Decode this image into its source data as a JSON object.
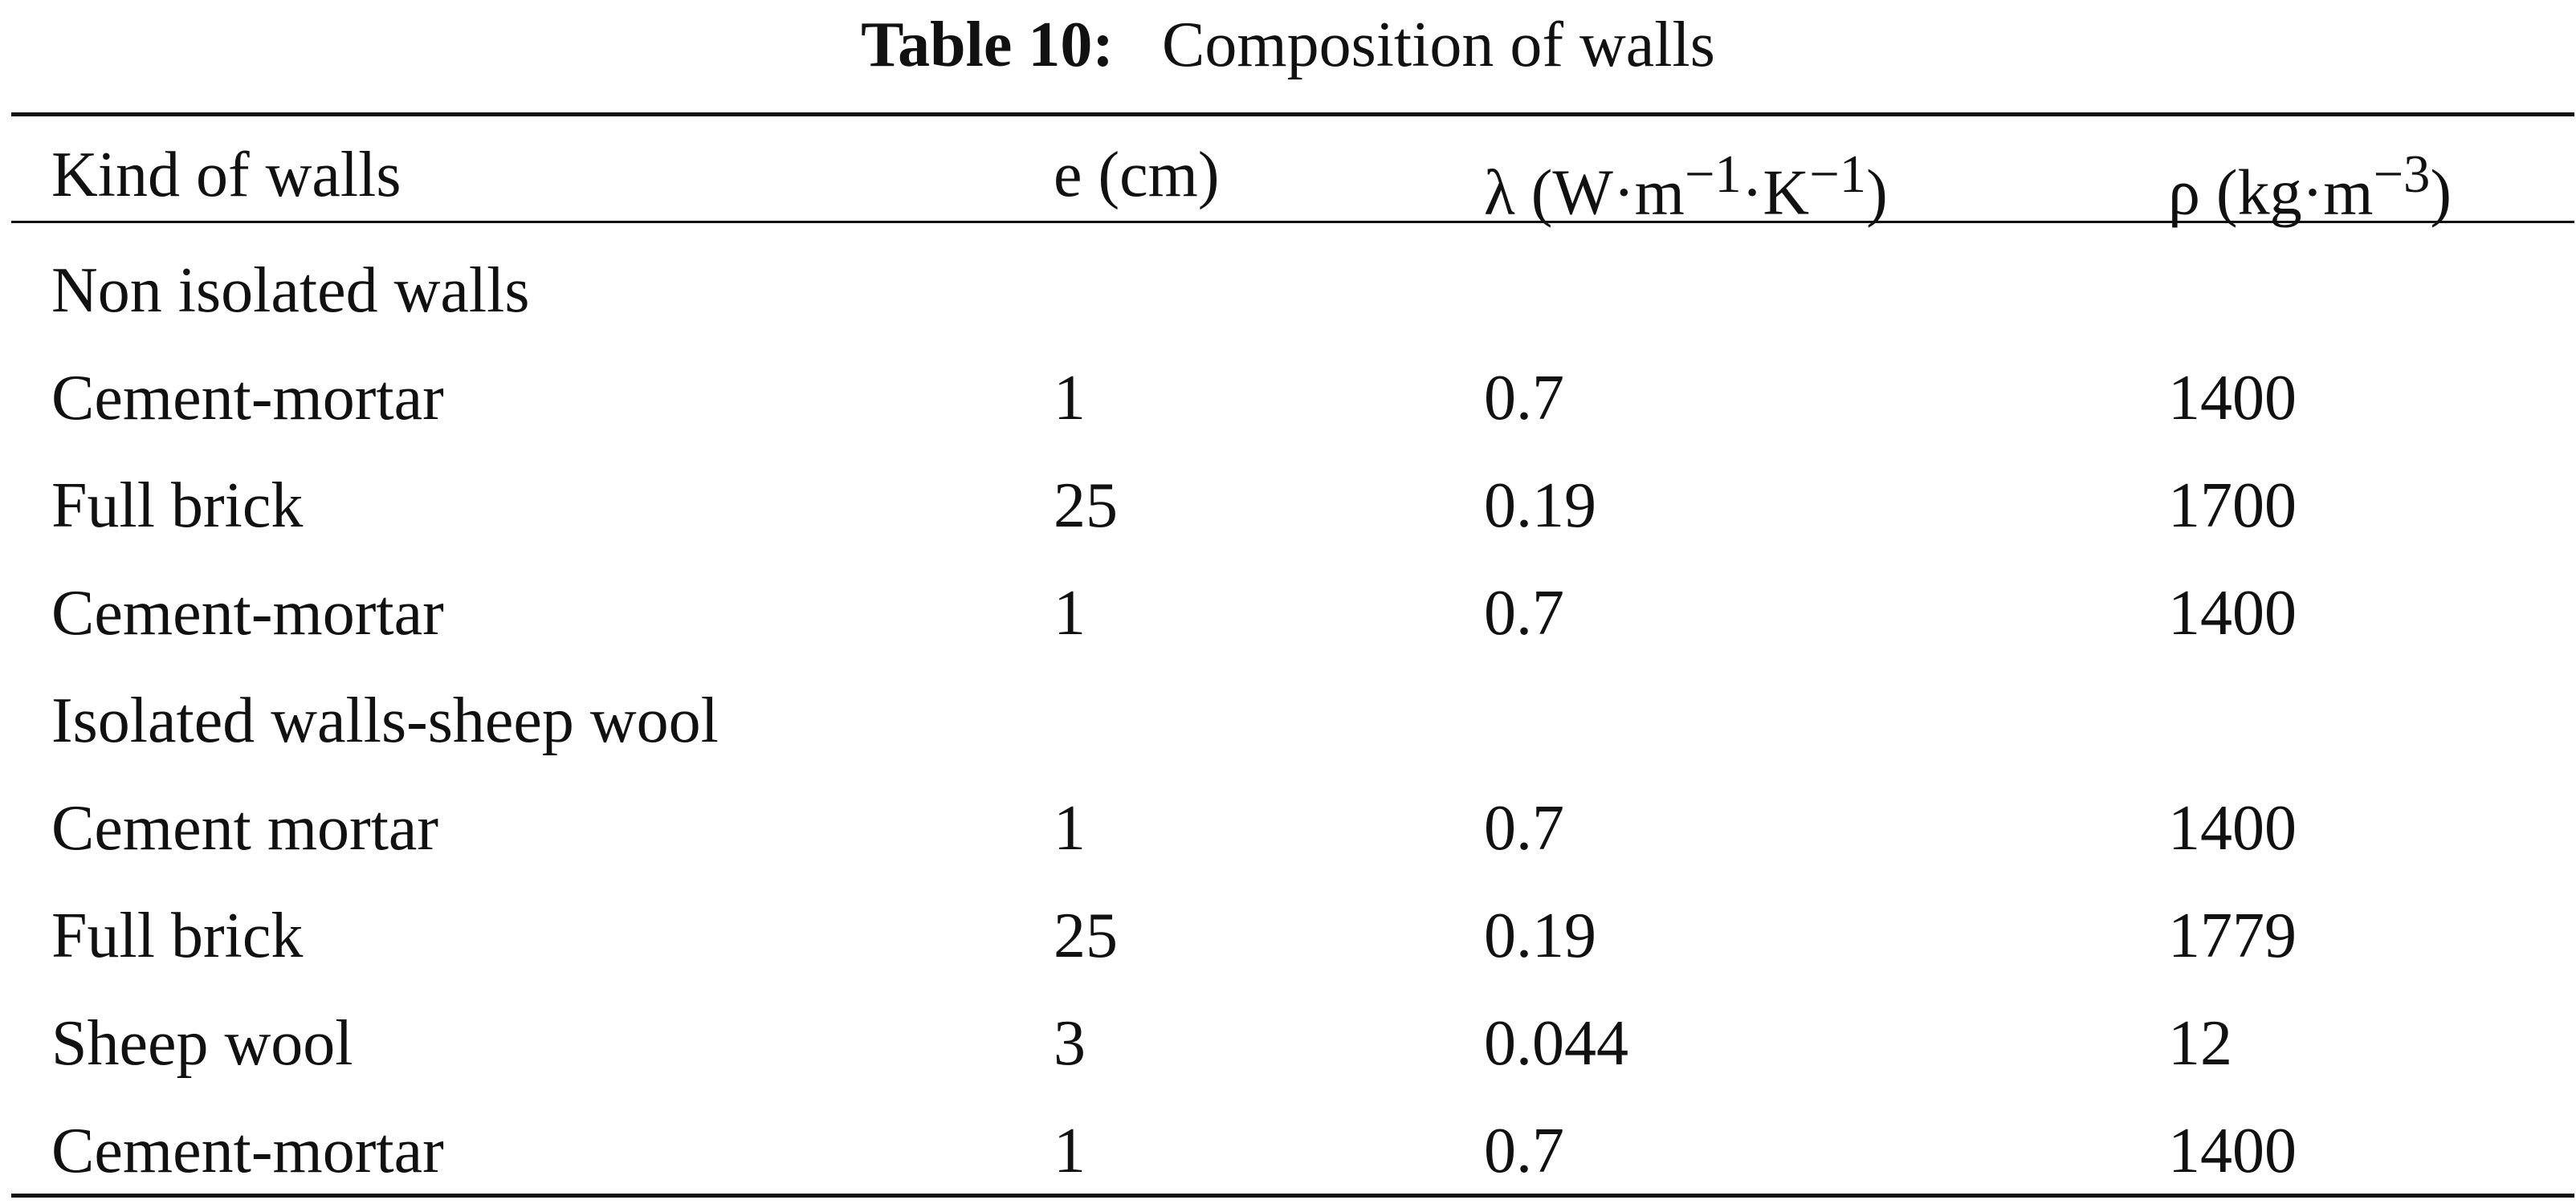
{
  "table": {
    "caption_label": "Table 10:",
    "caption_text": "Composition of walls",
    "headers": {
      "kind": "Kind of walls",
      "thickness": "e (cm)",
      "lambda_base": "λ (W·m",
      "lambda_exp1": "−1",
      "lambda_mid": "·K",
      "lambda_exp2": "−1",
      "lambda_end": ")",
      "rho_base": "ρ (kg·m",
      "rho_exp": "−3",
      "rho_end": ")"
    },
    "rows": [
      {
        "kind": "Non isolated walls",
        "e": "",
        "lambda": "",
        "rho": ""
      },
      {
        "kind": "Cement-mortar",
        "e": "1",
        "lambda": "0.7",
        "rho": "1400"
      },
      {
        "kind": "Full brick",
        "e": "25",
        "lambda": "0.19",
        "rho": "1700"
      },
      {
        "kind": "Cement-mortar",
        "e": "1",
        "lambda": "0.7",
        "rho": "1400"
      },
      {
        "kind": "Isolated walls-sheep wool",
        "e": "",
        "lambda": "",
        "rho": ""
      },
      {
        "kind": "Cement mortar",
        "e": "1",
        "lambda": "0.7",
        "rho": "1400"
      },
      {
        "kind": "Full brick",
        "e": "25",
        "lambda": "0.19",
        "rho": "1779"
      },
      {
        "kind": "Sheep wool",
        "e": "3",
        "lambda": "0.044",
        "rho": "12"
      },
      {
        "kind": "Cement-mortar",
        "e": "1",
        "lambda": "0.7",
        "rho": "1400"
      }
    ]
  }
}
